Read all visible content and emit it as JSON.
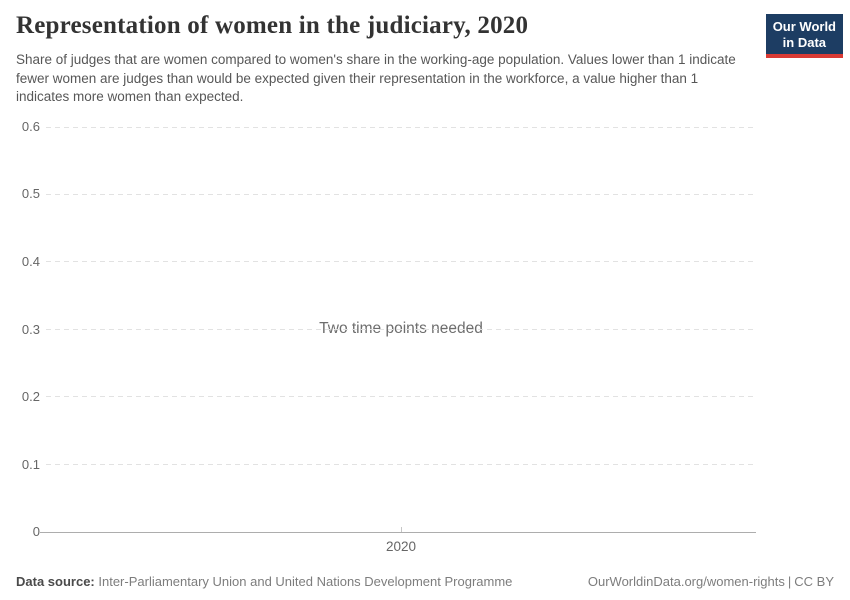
{
  "header": {
    "title": "Representation of women in the judiciary, 2020",
    "subtitle": "Share of judges that are women compared to women's share in the working-age population. Values lower than 1 indicate fewer women are judges than would be expected given their representation in the workforce, a value higher than 1 indicates more women than expected.",
    "logo": {
      "line1": "Our World",
      "line2": "in Data",
      "bg_color": "#1d3d63",
      "bar_color": "#d93a34"
    }
  },
  "chart_data": {
    "type": "line",
    "title": "Representation of women in the judiciary, 2020",
    "series": [],
    "empty_message": "Two time points needed",
    "xticks": [
      "2020"
    ],
    "yticks": [
      0,
      0.1,
      0.2,
      0.3,
      0.4,
      0.5,
      0.6
    ],
    "ylim": [
      0,
      0.6
    ],
    "xlabel": "",
    "ylabel": "",
    "grid": true,
    "legend": "none",
    "colors": {
      "gridline": "#e2e2e2",
      "axis_line": "#adadad",
      "tick_label": "#666666",
      "message_text": "#6d6d6d"
    }
  },
  "footer": {
    "source_label": "Data source:",
    "source_value": "Inter-Parliamentary Union and United Nations Development Programme",
    "attribution_url": "OurWorldinData.org/women-rights",
    "separator": "|",
    "license": "CC BY"
  }
}
